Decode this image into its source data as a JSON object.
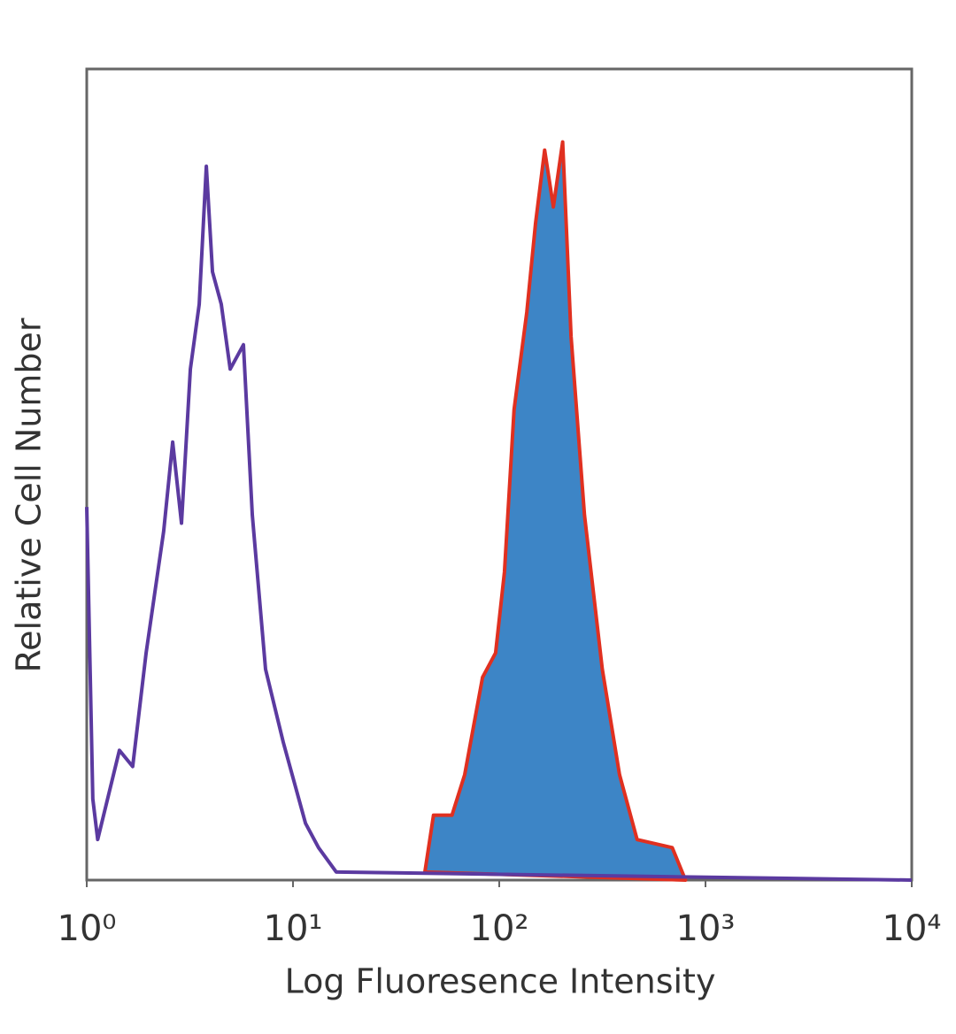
{
  "chart_data": {
    "type": "histogram-line",
    "xlabel": "Log Fluoresence Intensity",
    "ylabel": "Relative Cell Number",
    "xscale": "log",
    "xlim": [
      1,
      10000
    ],
    "xticks": [
      {
        "value": 1,
        "label": "10⁰"
      },
      {
        "value": 10,
        "label": "10¹"
      },
      {
        "value": 100,
        "label": "10²"
      },
      {
        "value": 1000,
        "label": "10³"
      },
      {
        "value": 10000,
        "label": "10⁴"
      }
    ],
    "ylim": [
      0,
      100
    ],
    "series": [
      {
        "color": "#5b3aa0",
        "fill": "none",
        "x": [
          1,
          1.07,
          1.13,
          1.44,
          1.67,
          1.94,
          2.36,
          2.61,
          2.88,
          3.18,
          3.51,
          3.8,
          4.07,
          4.49,
          4.96,
          5.75,
          6.35,
          7.36,
          8.97,
          11.5,
          13.3,
          16.2,
          10000
        ],
        "values": [
          46,
          10,
          5,
          16,
          14,
          28,
          43,
          54,
          44,
          63,
          71,
          88,
          75,
          71,
          63,
          66,
          45,
          26,
          17,
          7,
          4,
          1,
          0
        ]
      },
      {
        "color": "#e03020",
        "fill": "#3d85c6",
        "x": [
          43.6,
          48,
          59,
          68,
          83,
          96,
          106,
          118,
          136,
          150,
          166,
          183,
          203,
          223,
          259,
          316,
          383,
          466,
          690,
          800
        ],
        "values": [
          1,
          8,
          8,
          13,
          25,
          28,
          38,
          58,
          70,
          81,
          90,
          83,
          91,
          67,
          45,
          26,
          13,
          5,
          4,
          0
        ]
      }
    ]
  }
}
